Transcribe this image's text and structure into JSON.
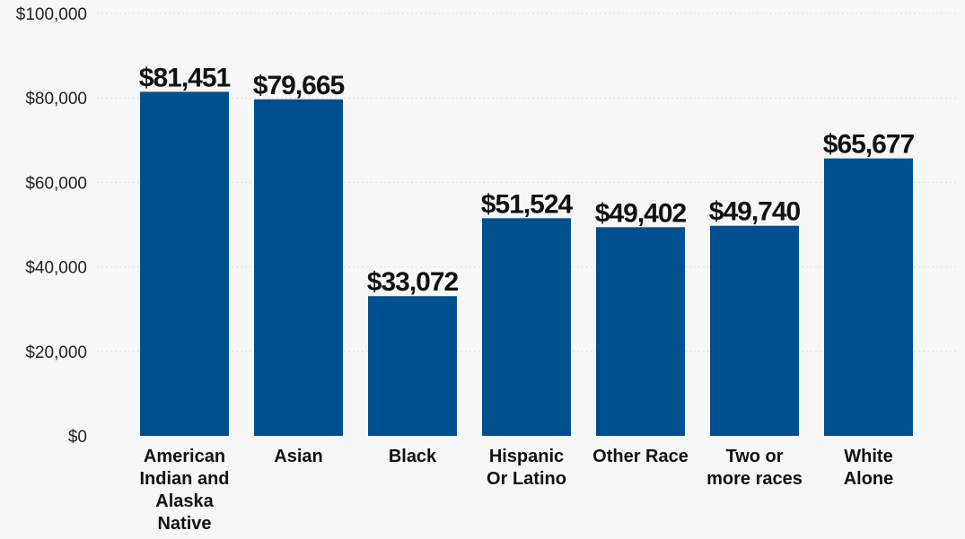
{
  "chart_data": {
    "type": "bar",
    "categories": [
      "American Indian and Alaska Native",
      "Asian",
      "Black",
      "Hispanic Or Latino",
      "Other Race",
      "Two or more races",
      "White Alone"
    ],
    "category_lines": [
      [
        "American",
        "Indian and",
        "Alaska",
        "Native"
      ],
      [
        "Asian"
      ],
      [
        "Black"
      ],
      [
        "Hispanic",
        "Or Latino"
      ],
      [
        "Other Race"
      ],
      [
        "Two or",
        "more races"
      ],
      [
        "White",
        "Alone"
      ]
    ],
    "values": [
      81451,
      79665,
      33072,
      51524,
      49402,
      49740,
      65677
    ],
    "data_labels": [
      "$81,451",
      "$79,665",
      "$33,072",
      "$51,524",
      "$49,402",
      "$49,740",
      "$65,677"
    ],
    "yticks": [
      0,
      20000,
      40000,
      60000,
      80000,
      100000
    ],
    "ytick_labels": [
      "$0",
      "$20,000",
      "$40,000",
      "$60,000",
      "$80,000",
      "$100,000"
    ],
    "ylim": [
      0,
      100000
    ],
    "title": "",
    "xlabel": "",
    "ylabel": "",
    "grid": true,
    "bar_color": "#00508f"
  }
}
